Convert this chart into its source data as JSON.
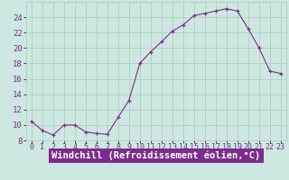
{
  "x": [
    0,
    1,
    2,
    3,
    4,
    5,
    6,
    7,
    8,
    9,
    10,
    11,
    12,
    13,
    14,
    15,
    16,
    17,
    18,
    19,
    20,
    21,
    22,
    23
  ],
  "y": [
    10.5,
    9.3,
    8.7,
    10.0,
    10.0,
    9.1,
    8.9,
    8.8,
    11.0,
    13.2,
    18.0,
    19.5,
    20.8,
    22.2,
    23.0,
    24.2,
    24.5,
    24.8,
    25.1,
    24.8,
    22.5,
    20.0,
    17.0,
    16.7
  ],
  "line_color": "#7B2D8B",
  "marker": "+",
  "marker_color": "#7B2D8B",
  "bg_color": "#cce8e0",
  "grid_color": "#b0c8c0",
  "xlabel": "Windchill (Refroidissement éolien,°C)",
  "xlabel_color": "#ffffff",
  "xlabel_bg": "#7B2D8B",
  "ylim": [
    8,
    26
  ],
  "yticks": [
    8,
    10,
    12,
    14,
    16,
    18,
    20,
    22,
    24
  ],
  "xlim": [
    -0.5,
    23.5
  ],
  "tick_label_color": "#7B2D8B",
  "font_size": 6.5,
  "xlabel_fontsize": 7.5
}
